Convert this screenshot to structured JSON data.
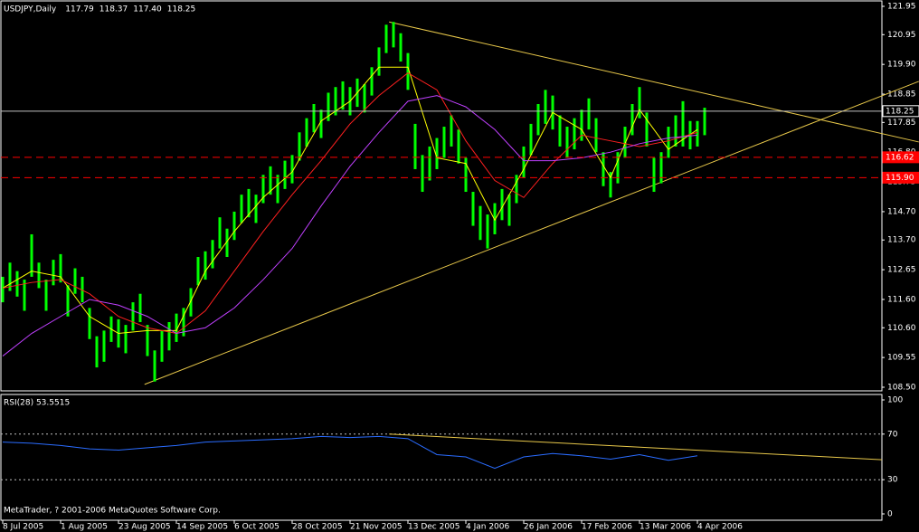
{
  "chart_data": [
    {
      "type": "ohlc",
      "title": "USDJPY,Daily",
      "header_values": [
        117.79,
        118.37,
        {
          "value": 117.4,
          "label": "117.40"
        },
        118.25
      ],
      "color": "#00ff00",
      "x": [
        0,
        1,
        2,
        3,
        4,
        5,
        6,
        7,
        8,
        9,
        10,
        11,
        12,
        13,
        14,
        15,
        16,
        17,
        18,
        19,
        20,
        21,
        22,
        23,
        24,
        25,
        26,
        27,
        28,
        29,
        30,
        31,
        32,
        33,
        34,
        35,
        36,
        37,
        38,
        39,
        40,
        41,
        42,
        43,
        44,
        45,
        46,
        47,
        48,
        49,
        50,
        51,
        52,
        53,
        54,
        55,
        56,
        57,
        58,
        59,
        60,
        61,
        62,
        63,
        64,
        65,
        66,
        67,
        68,
        69,
        70,
        71,
        72,
        73,
        74,
        75,
        76,
        77,
        78,
        79,
        80,
        81,
        82,
        83,
        84,
        85,
        86,
        87,
        88,
        89,
        90,
        91,
        92,
        93,
        94,
        95,
        96,
        97
      ],
      "high": [
        112.4,
        112.9,
        112.6,
        112.3,
        113.9,
        112.9,
        112.3,
        113.0,
        113.2,
        112.1,
        112.7,
        112.4,
        111.3,
        110.3,
        110.5,
        111.0,
        110.9,
        110.7,
        111.5,
        111.8,
        110.7,
        109.8,
        110.5,
        110.8,
        111.1,
        111.3,
        112.0,
        113.1,
        113.3,
        113.7,
        114.5,
        114.1,
        114.7,
        115.3,
        115.5,
        115.3,
        116.0,
        116.3,
        116.0,
        116.5,
        116.7,
        117.5,
        118.0,
        118.5,
        118.3,
        118.9,
        119.1,
        119.3,
        119.1,
        119.4,
        119.2,
        119.8,
        120.5,
        121.3,
        121.4,
        121.0,
        120.3,
        117.8,
        116.7,
        117.0,
        117.3,
        117.7,
        118.1,
        117.6,
        116.6,
        115.4,
        114.9,
        114.6,
        115.0,
        115.5,
        115.3,
        116.0,
        117.0,
        117.8,
        118.5,
        119.0,
        118.8,
        118.1,
        117.7,
        118.0,
        118.3,
        118.7,
        118.0,
        116.8,
        116.1,
        116.8,
        117.7,
        118.5,
        119.1,
        118.2,
        116.6,
        116.8,
        117.7,
        118.1,
        118.6,
        117.9,
        117.9,
        118.37
      ],
      "low": [
        111.5,
        111.9,
        111.7,
        111.2,
        112.4,
        112.0,
        111.2,
        112.1,
        112.2,
        111.0,
        111.8,
        111.5,
        110.2,
        109.2,
        109.4,
        110.1,
        109.9,
        109.7,
        110.5,
        110.8,
        109.6,
        108.7,
        109.4,
        109.8,
        110.1,
        110.3,
        111.0,
        112.1,
        112.3,
        112.7,
        113.4,
        113.1,
        113.7,
        114.3,
        114.5,
        114.3,
        115.0,
        115.3,
        115.0,
        115.5,
        115.7,
        116.5,
        117.0,
        117.5,
        117.3,
        117.9,
        118.1,
        118.3,
        118.1,
        118.4,
        118.2,
        118.8,
        119.5,
        120.3,
        120.5,
        120.0,
        119.0,
        116.2,
        115.4,
        115.8,
        116.2,
        116.6,
        117.0,
        116.4,
        115.4,
        114.2,
        113.7,
        113.4,
        113.9,
        114.4,
        114.2,
        115.0,
        115.9,
        116.7,
        117.4,
        117.8,
        117.6,
        117.0,
        116.6,
        116.9,
        117.2,
        117.6,
        116.8,
        115.6,
        115.2,
        115.7,
        116.6,
        117.4,
        118.0,
        117.0,
        115.4,
        115.7,
        116.6,
        117.0,
        117.0,
        116.9,
        117.0,
        117.4
      ],
      "lines": [
        {
          "color": "#ffff00",
          "x": [
            0,
            4,
            8,
            12,
            16,
            20,
            24,
            28,
            32,
            36,
            40,
            44,
            48,
            52,
            56,
            60,
            64,
            68,
            72,
            76,
            80,
            84,
            88,
            92,
            96
          ],
          "values": [
            112.0,
            112.6,
            112.4,
            111.0,
            110.4,
            110.5,
            110.5,
            112.6,
            114.0,
            115.2,
            116.1,
            117.9,
            118.6,
            119.8,
            119.8,
            116.6,
            116.4,
            114.4,
            116.2,
            118.2,
            117.6,
            115.9,
            118.3,
            116.9,
            117.6
          ]
        },
        {
          "color": "#ff2020",
          "x": [
            0,
            4,
            8,
            12,
            16,
            20,
            24,
            28,
            32,
            36,
            40,
            44,
            48,
            52,
            56,
            60,
            64,
            68,
            72,
            76,
            80,
            84,
            88,
            92,
            96
          ],
          "values": [
            112.0,
            112.2,
            112.3,
            111.8,
            111.0,
            110.6,
            110.4,
            111.2,
            112.6,
            114.0,
            115.3,
            116.5,
            117.8,
            118.8,
            119.6,
            119.0,
            117.2,
            115.8,
            115.2,
            116.4,
            117.4,
            117.2,
            117.0,
            117.2,
            117.5
          ]
        },
        {
          "color": "#c040ff",
          "x": [
            0,
            4,
            8,
            12,
            16,
            20,
            24,
            28,
            32,
            36,
            40,
            44,
            48,
            52,
            56,
            60,
            64,
            68,
            72,
            76,
            80,
            84,
            88,
            92,
            96
          ],
          "values": [
            109.6,
            110.4,
            111.0,
            111.6,
            111.4,
            111.0,
            110.4,
            110.6,
            111.3,
            112.3,
            113.4,
            114.9,
            116.3,
            117.5,
            118.6,
            118.8,
            118.4,
            117.6,
            116.5,
            116.5,
            116.6,
            116.8,
            117.1,
            117.3,
            117.4
          ]
        }
      ],
      "trendline_color": "#e8c84a",
      "trendlines": [
        {
          "x": [
            53.4,
            126.6
          ],
          "y": [
            121.4,
            117.16
          ]
        },
        {
          "x": [
            19.6,
            126.6
          ],
          "y": [
            108.6,
            119.3
          ]
        }
      ],
      "levels": {
        "values": [
          118.25,
          116.62,
          115.9
        ],
        "value_labels": [
          "118.25",
          "116.62",
          "115.90"
        ],
        "colors": [
          "#c0c0c0",
          "#ff0000",
          "#ff0000"
        ],
        "dashed": [
          false,
          true,
          true
        ]
      },
      "xlim": [
        0,
        121.5
      ],
      "xticks": [
        {
          "value": 0,
          "label": "8 Jul 2005"
        },
        {
          "value": 8,
          "label": "1 Aug 2005"
        },
        {
          "value": 16,
          "label": "23 Aug 2005"
        },
        {
          "value": 24,
          "label": "14 Sep 2005"
        },
        {
          "value": 32,
          "label": "6 Oct 2005"
        },
        {
          "value": 40,
          "label": "28 Oct 2005"
        },
        {
          "value": 48,
          "label": "21 Nov 2005"
        },
        {
          "value": 56,
          "label": "13 Dec 2005"
        },
        {
          "value": 64,
          "label": "4 Jan 2006"
        },
        {
          "value": 72,
          "label": "26 Jan 2006"
        },
        {
          "value": 80,
          "label": "17 Feb 2006"
        },
        {
          "value": 88,
          "label": "13 Mar 2006"
        },
        {
          "value": 96,
          "label": "4 Apr 2006"
        }
      ],
      "ylim": [
        108.5,
        121.95
      ],
      "yticks": [
        121.95,
        120.95,
        {
          "value": 119.9,
          "label": "119.90"
        },
        118.85,
        117.85,
        {
          "value": 116.8,
          "label": "116.80"
        },
        115.75,
        {
          "value": 114.7,
          "label": "114.70"
        },
        {
          "value": 113.7,
          "label": "113.70"
        },
        112.65,
        {
          "value": 111.6,
          "label": "111.60"
        },
        {
          "value": 110.6,
          "label": "110.60"
        },
        109.55,
        {
          "value": 108.5,
          "label": "108.50"
        }
      ]
    },
    {
      "type": "line",
      "title": "RSI(28) 53.5515",
      "color": "#2a6cff",
      "x": [
        0,
        4,
        8,
        12,
        16,
        20,
        24,
        28,
        32,
        36,
        40,
        44,
        48,
        52,
        56,
        60,
        64,
        68,
        72,
        76,
        80,
        84,
        88,
        92,
        96
      ],
      "values": [
        63,
        62,
        60,
        57,
        56,
        58,
        60,
        63,
        64,
        65,
        66,
        68,
        67,
        68,
        66,
        52,
        50,
        40,
        50,
        53,
        51,
        48,
        52,
        47,
        51
      ],
      "trendline_color": "#e8c84a",
      "trendlines": [
        {
          "x": [
            53.4,
            121.5
          ],
          "y": [
            70,
            47.5
          ]
        }
      ],
      "xlim": [
        0,
        121.5
      ],
      "ylim": [
        0,
        100
      ],
      "yticks": [
        100,
        70,
        30,
        0
      ],
      "footer": "MetaTrader, ? 2001-2006 MetaQuotes Software Corp."
    }
  ]
}
